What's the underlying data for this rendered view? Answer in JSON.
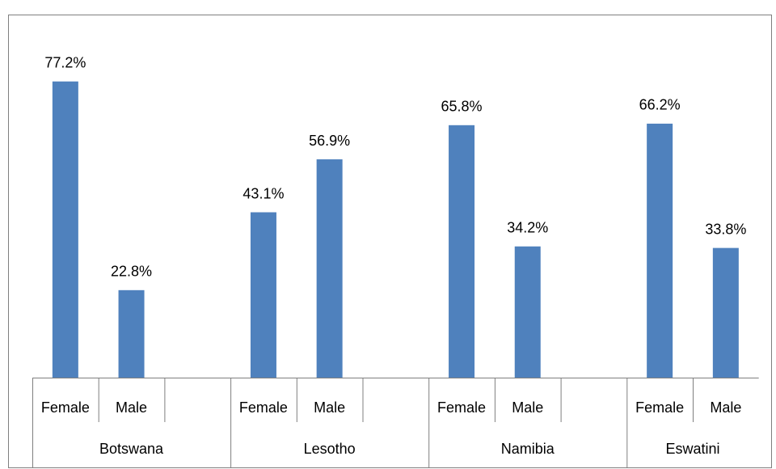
{
  "chart_data": {
    "type": "bar",
    "color": "#4f81bd",
    "ylim": [
      0,
      90
    ],
    "groups": [
      {
        "name": "Botswana",
        "categories": [
          "Female",
          "Male",
          null
        ],
        "values": [
          77.2,
          22.8,
          null
        ],
        "value_labels": [
          "77.2%",
          "22.8%",
          null
        ]
      },
      {
        "name": "Lesotho",
        "categories": [
          "Female",
          "Male",
          null
        ],
        "values": [
          43.1,
          56.9,
          null
        ],
        "value_labels": [
          "43.1%",
          "56.9%",
          null
        ]
      },
      {
        "name": "Namibia",
        "categories": [
          "Female",
          "Male",
          null
        ],
        "values": [
          65.8,
          34.2,
          null
        ],
        "value_labels": [
          "65.8%",
          "34.2%",
          null
        ]
      },
      {
        "name": "Eswatini",
        "categories": [
          "Female",
          "Male"
        ],
        "values": [
          66.2,
          33.8
        ],
        "value_labels": [
          "66.2%",
          "33.8%"
        ]
      }
    ]
  }
}
